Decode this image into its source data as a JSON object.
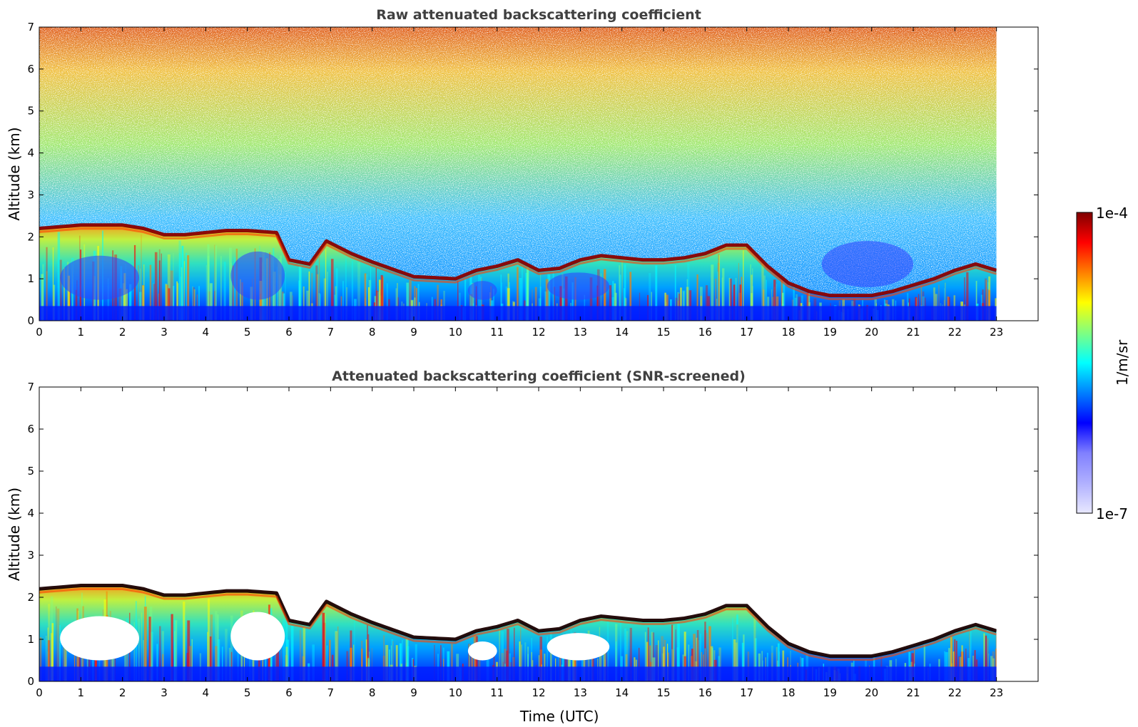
{
  "chart_data": [
    {
      "type": "heatmap",
      "title": "Raw attenuated backscattering coefficient",
      "xlabel": "",
      "ylabel": "Altitude (km)",
      "xlim": [
        0,
        24
      ],
      "ylim": [
        0,
        7
      ],
      "xticks": [
        0,
        1,
        2,
        3,
        4,
        5,
        6,
        7,
        8,
        9,
        10,
        11,
        12,
        13,
        14,
        15,
        16,
        17,
        18,
        19,
        20,
        21,
        22,
        23
      ],
      "yticks": [
        0,
        1,
        2,
        3,
        4,
        5,
        6,
        7
      ],
      "data_end_time": 23,
      "layer_top_km": [
        [
          0,
          2.2
        ],
        [
          1,
          2.28
        ],
        [
          2,
          2.28
        ],
        [
          2.5,
          2.2
        ],
        [
          3,
          2.05
        ],
        [
          3.5,
          2.05
        ],
        [
          4,
          2.1
        ],
        [
          4.5,
          2.15
        ],
        [
          5,
          2.15
        ],
        [
          5.7,
          2.1
        ],
        [
          6,
          1.45
        ],
        [
          6.5,
          1.35
        ],
        [
          6.9,
          1.9
        ],
        [
          7.5,
          1.6
        ],
        [
          8,
          1.4
        ],
        [
          9,
          1.05
        ],
        [
          10,
          1.0
        ],
        [
          10.5,
          1.2
        ],
        [
          11,
          1.3
        ],
        [
          11.5,
          1.45
        ],
        [
          12,
          1.2
        ],
        [
          12.5,
          1.25
        ],
        [
          13,
          1.45
        ],
        [
          13.5,
          1.55
        ],
        [
          14,
          1.5
        ],
        [
          14.5,
          1.45
        ],
        [
          15,
          1.45
        ],
        [
          15.5,
          1.5
        ],
        [
          16,
          1.6
        ],
        [
          16.5,
          1.8
        ],
        [
          17,
          1.8
        ],
        [
          17.5,
          1.3
        ],
        [
          18,
          0.9
        ],
        [
          18.5,
          0.7
        ],
        [
          19,
          0.6
        ],
        [
          20,
          0.6
        ],
        [
          20.5,
          0.7
        ],
        [
          21,
          0.85
        ],
        [
          21.5,
          1.0
        ],
        [
          22,
          1.2
        ],
        [
          22.5,
          1.35
        ],
        [
          23,
          1.2
        ]
      ],
      "colorbar": {
        "label": "1/m/sr",
        "min_label": "1e-7",
        "max_label": "1e-4",
        "scale": "log"
      }
    },
    {
      "type": "heatmap",
      "title": "Attenuated backscattering coefficient (SNR-screened)",
      "xlabel": "Time (UTC)",
      "ylabel": "Altitude (km)",
      "xlim": [
        0,
        24
      ],
      "ylim": [
        0,
        7
      ],
      "xticks": [
        0,
        1,
        2,
        3,
        4,
        5,
        6,
        7,
        8,
        9,
        10,
        11,
        12,
        13,
        14,
        15,
        16,
        17,
        18,
        19,
        20,
        21,
        22,
        23
      ],
      "yticks": [
        0,
        1,
        2,
        3,
        4,
        5,
        6,
        7
      ],
      "data_end_time": 23,
      "layer_top_km": [
        [
          0,
          2.2
        ],
        [
          1,
          2.28
        ],
        [
          2,
          2.28
        ],
        [
          2.5,
          2.2
        ],
        [
          3,
          2.05
        ],
        [
          3.5,
          2.05
        ],
        [
          4,
          2.1
        ],
        [
          4.5,
          2.15
        ],
        [
          5,
          2.15
        ],
        [
          5.7,
          2.1
        ],
        [
          6,
          1.45
        ],
        [
          6.5,
          1.35
        ],
        [
          6.9,
          1.9
        ],
        [
          7.5,
          1.6
        ],
        [
          8,
          1.4
        ],
        [
          9,
          1.05
        ],
        [
          10,
          1.0
        ],
        [
          10.5,
          1.2
        ],
        [
          11,
          1.3
        ],
        [
          11.5,
          1.45
        ],
        [
          12,
          1.2
        ],
        [
          12.5,
          1.25
        ],
        [
          13,
          1.45
        ],
        [
          13.5,
          1.55
        ],
        [
          14,
          1.5
        ],
        [
          14.5,
          1.45
        ],
        [
          15,
          1.45
        ],
        [
          15.5,
          1.5
        ],
        [
          16,
          1.6
        ],
        [
          16.5,
          1.8
        ],
        [
          17,
          1.8
        ],
        [
          17.5,
          1.3
        ],
        [
          18,
          0.9
        ],
        [
          18.5,
          0.7
        ],
        [
          19,
          0.6
        ],
        [
          20,
          0.6
        ],
        [
          20.5,
          0.7
        ],
        [
          21,
          0.85
        ],
        [
          21.5,
          1.0
        ],
        [
          22,
          1.2
        ],
        [
          22.5,
          1.35
        ],
        [
          23,
          1.2
        ]
      ]
    }
  ],
  "colors": {
    "colormap": [
      "#000080",
      "#0000ff",
      "#0080ff",
      "#00ffff",
      "#80ff80",
      "#ffff00",
      "#ff8000",
      "#ff0000",
      "#800000"
    ],
    "colorbar_low": [
      "#e8e8ff",
      "#b0b0ff",
      "#8080ff"
    ],
    "layer_peak": "#8b0000",
    "layer_peak_screened": "#1a0000",
    "title": "#404040"
  }
}
